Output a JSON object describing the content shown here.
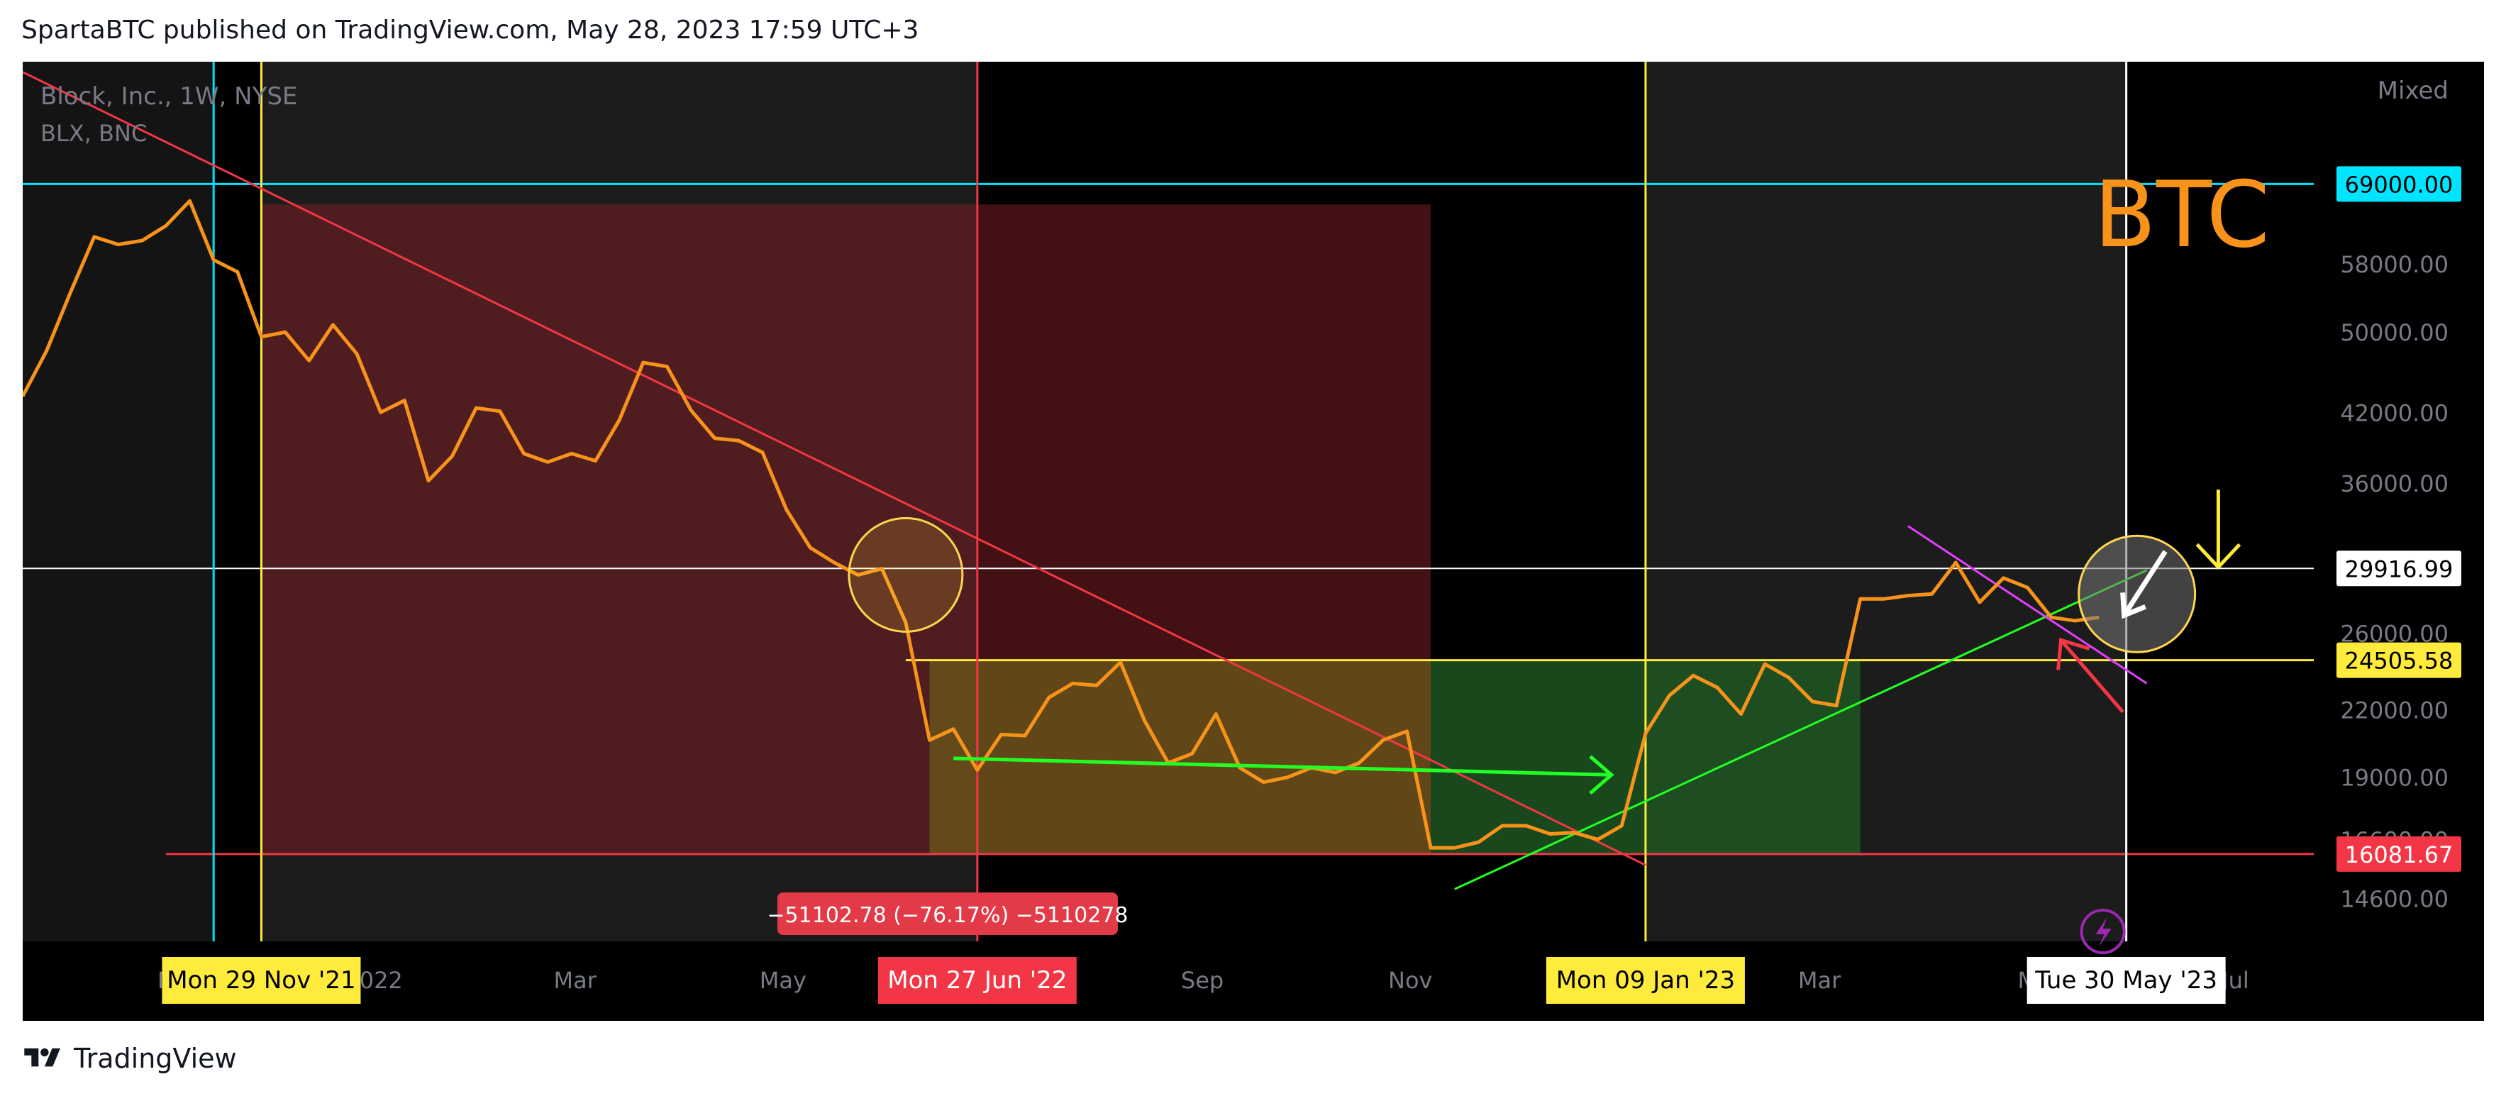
{
  "header": {
    "published": "SpartaBTC published on TradingView.com, May 28, 2023 17:59 UTC+3"
  },
  "footer": {
    "brand": "TradingView"
  },
  "chart_data": {
    "type": "line",
    "symbol_line1": "Block, Inc., 1W, NYSE",
    "symbol_line2": "BLX, BNC",
    "watermark": "BTC",
    "scale_mode": "Mixed",
    "y_scale": "log",
    "ylim": [
      13300,
      90000
    ],
    "xlim": [
      "2021-09-20",
      "2023-07-24"
    ],
    "y_ticks": [
      14600,
      16600,
      19000,
      22000,
      26000,
      36000,
      42000,
      50000,
      58000
    ],
    "price_labels": [
      {
        "text": "69000.00",
        "value": 69000,
        "bg": "#00e5ff",
        "fg": "#000000"
      },
      {
        "text": "29916.99",
        "value": 29916.99,
        "bg": "#ffffff",
        "fg": "#000000"
      },
      {
        "text": "24505.58",
        "value": 24505.58,
        "bg": "#ffeb3b",
        "fg": "#000000"
      },
      {
        "text": "16081.67",
        "value": 16081.67,
        "bg": "#f23645",
        "fg": "#ffffff"
      }
    ],
    "x_ticks": [
      {
        "label": "N",
        "date": "2021-11-01"
      },
      {
        "label": "2022",
        "date": "2022-01-01"
      },
      {
        "label": "Mar",
        "date": "2022-03-01"
      },
      {
        "label": "May",
        "date": "2022-05-01"
      },
      {
        "label": "Sep",
        "date": "2022-09-01"
      },
      {
        "label": "Nov",
        "date": "2022-11-01"
      },
      {
        "label": "Mar",
        "date": "2023-03-01"
      },
      {
        "label": "M",
        "date": "2023-05-01"
      },
      {
        "label": "Jul",
        "date": "2023-07-01"
      }
    ],
    "date_labels": [
      {
        "text": "Mon 29 Nov '21",
        "date": "2021-11-29",
        "bg": "#ffeb3b",
        "fg": "#000000"
      },
      {
        "text": "Mon 27 Jun '22",
        "date": "2022-06-27",
        "bg": "#f23645",
        "fg": "#ffffff"
      },
      {
        "text": "Mon 09 Jan '23",
        "date": "2023-01-09",
        "bg": "#ffeb3b",
        "fg": "#000000"
      },
      {
        "text": "Tue 30 May '23",
        "date": "2023-05-30",
        "bg": "#ffffff",
        "fg": "#000000"
      }
    ],
    "measure_label": "−51102.78 (−76.17%) −5110278",
    "series": [
      {
        "color": "#f7931a",
        "points": [
          [
            "2021-09-20",
            43500
          ],
          [
            "2021-09-27",
            48000
          ],
          [
            "2021-10-04",
            54500
          ],
          [
            "2021-10-11",
            61500
          ],
          [
            "2021-10-18",
            60500
          ],
          [
            "2021-10-25",
            61000
          ],
          [
            "2021-11-01",
            63000
          ],
          [
            "2021-11-08",
            66500
          ],
          [
            "2021-11-15",
            58500
          ],
          [
            "2021-11-22",
            57000
          ],
          [
            "2021-11-29",
            49500
          ],
          [
            "2021-12-06",
            50000
          ],
          [
            "2021-12-13",
            47000
          ],
          [
            "2021-12-20",
            50800
          ],
          [
            "2021-12-27",
            47700
          ],
          [
            "2022-01-03",
            42000
          ],
          [
            "2022-01-10",
            43100
          ],
          [
            "2022-01-17",
            36200
          ],
          [
            "2022-01-24",
            38200
          ],
          [
            "2022-01-31",
            42400
          ],
          [
            "2022-02-07",
            42100
          ],
          [
            "2022-02-14",
            38400
          ],
          [
            "2022-02-21",
            37700
          ],
          [
            "2022-02-28",
            38400
          ],
          [
            "2022-03-07",
            37800
          ],
          [
            "2022-03-14",
            41300
          ],
          [
            "2022-03-21",
            46800
          ],
          [
            "2022-03-28",
            46400
          ],
          [
            "2022-04-04",
            42200
          ],
          [
            "2022-04-11",
            39700
          ],
          [
            "2022-04-18",
            39500
          ],
          [
            "2022-04-25",
            38500
          ],
          [
            "2022-05-02",
            34000
          ],
          [
            "2022-05-09",
            31300
          ],
          [
            "2022-05-16",
            30300
          ],
          [
            "2022-05-23",
            29500
          ],
          [
            "2022-05-30",
            29900
          ],
          [
            "2022-06-06",
            26600
          ],
          [
            "2022-06-13",
            20600
          ],
          [
            "2022-06-20",
            21100
          ],
          [
            "2022-06-27",
            19300
          ],
          [
            "2022-07-04",
            20850
          ],
          [
            "2022-07-11",
            20800
          ],
          [
            "2022-07-18",
            22600
          ],
          [
            "2022-07-25",
            23300
          ],
          [
            "2022-08-01",
            23200
          ],
          [
            "2022-08-08",
            24400
          ],
          [
            "2022-08-15",
            21500
          ],
          [
            "2022-08-22",
            19600
          ],
          [
            "2022-08-29",
            20000
          ],
          [
            "2022-09-05",
            21800
          ],
          [
            "2022-09-12",
            19400
          ],
          [
            "2022-09-19",
            18800
          ],
          [
            "2022-09-26",
            19000
          ],
          [
            "2022-10-03",
            19400
          ],
          [
            "2022-10-10",
            19200
          ],
          [
            "2022-10-17",
            19600
          ],
          [
            "2022-10-24",
            20600
          ],
          [
            "2022-10-31",
            21000
          ],
          [
            "2022-11-07",
            16300
          ],
          [
            "2022-11-14",
            16300
          ],
          [
            "2022-11-21",
            16500
          ],
          [
            "2022-11-28",
            17100
          ],
          [
            "2022-12-05",
            17100
          ],
          [
            "2022-12-12",
            16800
          ],
          [
            "2022-12-19",
            16850
          ],
          [
            "2022-12-26",
            16600
          ],
          [
            "2023-01-02",
            17100
          ],
          [
            "2023-01-09",
            20900
          ],
          [
            "2023-01-16",
            22700
          ],
          [
            "2023-01-23",
            23700
          ],
          [
            "2023-01-30",
            23100
          ],
          [
            "2023-02-06",
            21800
          ],
          [
            "2023-02-13",
            24300
          ],
          [
            "2023-02-20",
            23600
          ],
          [
            "2023-02-27",
            22400
          ],
          [
            "2023-03-06",
            22200
          ],
          [
            "2023-03-13",
            28000
          ],
          [
            "2023-03-20",
            28000
          ],
          [
            "2023-03-27",
            28200
          ],
          [
            "2023-04-03",
            28300
          ],
          [
            "2023-04-10",
            30300
          ],
          [
            "2023-04-17",
            27800
          ],
          [
            "2023-04-24",
            29300
          ],
          [
            "2023-05-01",
            28700
          ],
          [
            "2023-05-08",
            26900
          ],
          [
            "2023-05-15",
            26700
          ],
          [
            "2023-05-22",
            26900
          ]
        ]
      }
    ],
    "colors": {
      "background": "#000000",
      "price_line": "#f7931a",
      "red_zone": "#7a1f22",
      "yellow_zone": "#6b5a1a",
      "green_zone": "#1e5a22",
      "trend_red": "#f23645",
      "trend_green": "#22ff22",
      "trend_magenta": "#e040fb",
      "cyan": "#00e5ff",
      "yellow": "#ffeb3b"
    },
    "icons": {
      "replay": "lightning-icon"
    }
  }
}
